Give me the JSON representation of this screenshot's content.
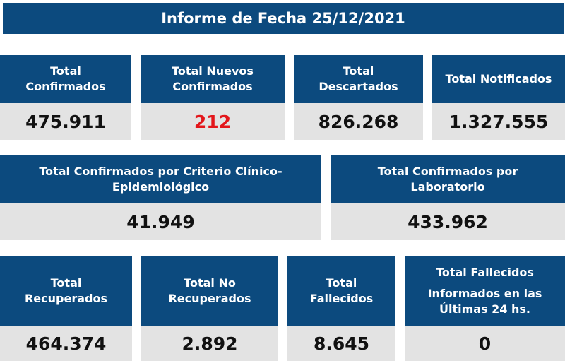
{
  "title": "Informe de Fecha 25/12/2021",
  "row1": [
    {
      "label_lines": [
        "Total",
        "Confirmados"
      ],
      "value": "475.911"
    },
    {
      "label_lines": [
        "Total Nuevos",
        "Confirmados"
      ],
      "value": "212"
    },
    {
      "label_lines": [
        "Total",
        "Descartados"
      ],
      "value": "826.268"
    },
    {
      "label_lines": [
        "Total Notificados"
      ],
      "value": "1.327.555"
    }
  ],
  "row2": [
    {
      "label_lines": [
        "Total Confirmados por Criterio Clínico-",
        "Epidemiológico"
      ],
      "value": "41.949"
    },
    {
      "label_lines": [
        "Total Confirmados por",
        "Laboratorio"
      ],
      "value": "433.962"
    }
  ],
  "row3": [
    {
      "label_lines": [
        "Total",
        "Recuperados"
      ],
      "value": "464.374"
    },
    {
      "label_lines": [
        "Total No",
        "Recuperados"
      ],
      "value": "2.892"
    },
    {
      "label_lines": [
        "Total",
        "Fallecidos"
      ],
      "value": "8.645"
    },
    {
      "label_lines": [
        "Total Fallecidos",
        "Informados en las",
        "Últimas 24 hs."
      ],
      "value": "0"
    }
  ],
  "colors": {
    "header_blue": "#0c4a7e",
    "value_bg": "#e3e3e3",
    "highlight_red": "#e3161b"
  }
}
